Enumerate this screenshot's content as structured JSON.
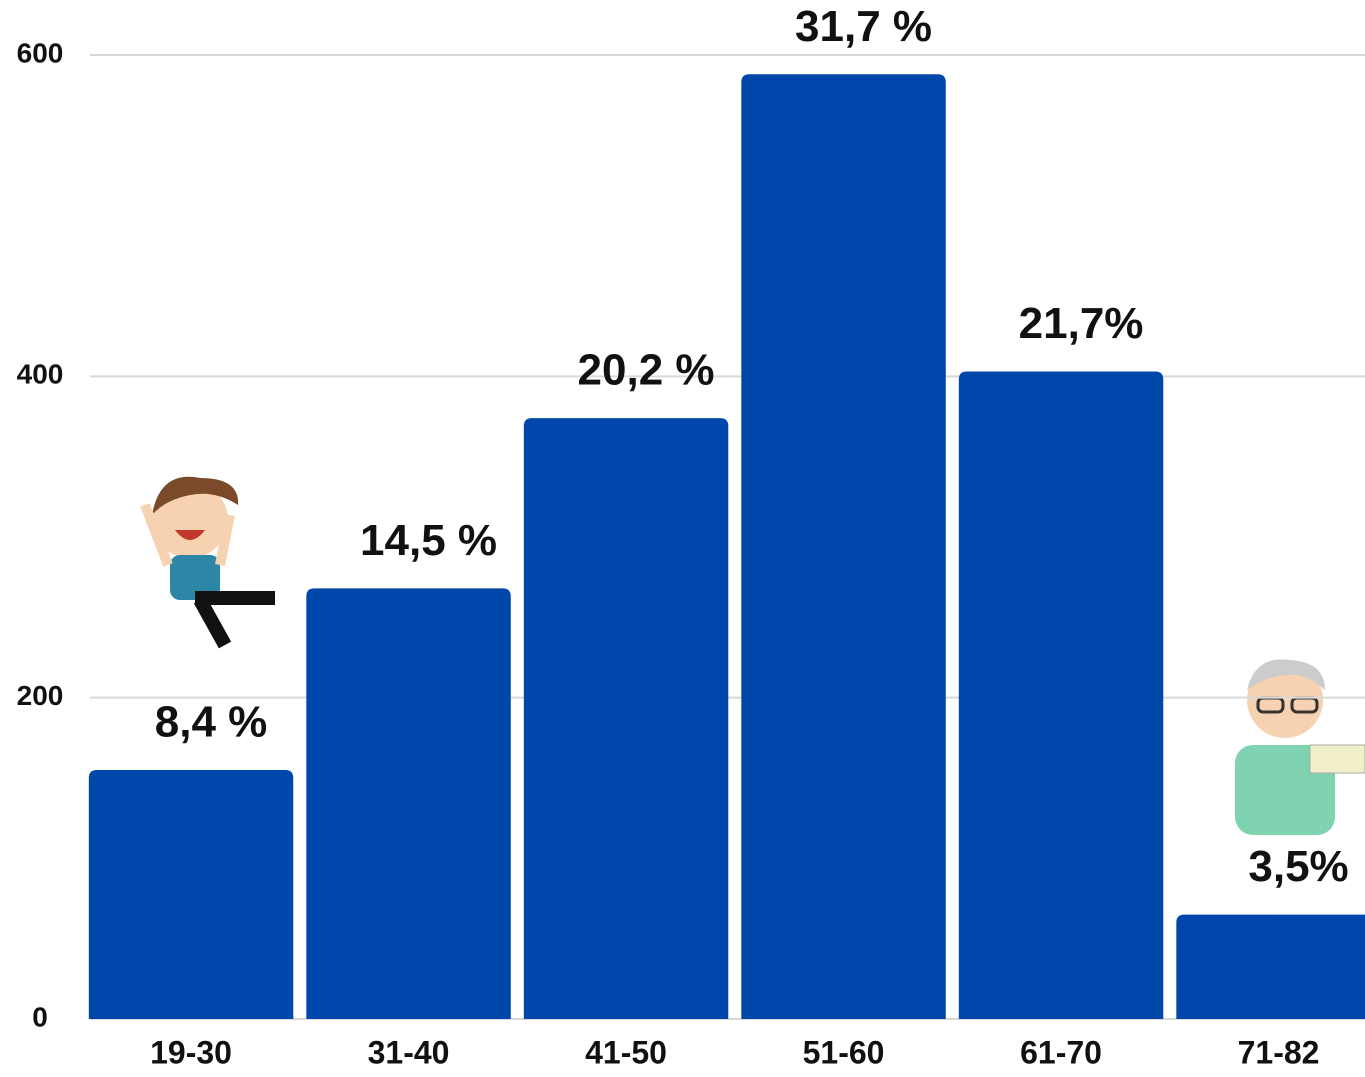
{
  "chart_data": {
    "type": "bar",
    "categories": [
      "19-30",
      "31-40",
      "41-50",
      "51-60",
      "61-70",
      "71-82"
    ],
    "values": [
      155,
      268,
      374,
      588,
      403,
      65
    ],
    "annotations": [
      "8,4 %",
      "14,5 %",
      "20,2 %",
      "31,7 %",
      "21,7%",
      "3,5%"
    ],
    "color": "#0047ab",
    "ylim": [
      0,
      600
    ],
    "yticks": [
      0,
      200,
      400,
      600
    ],
    "grid": true
  }
}
